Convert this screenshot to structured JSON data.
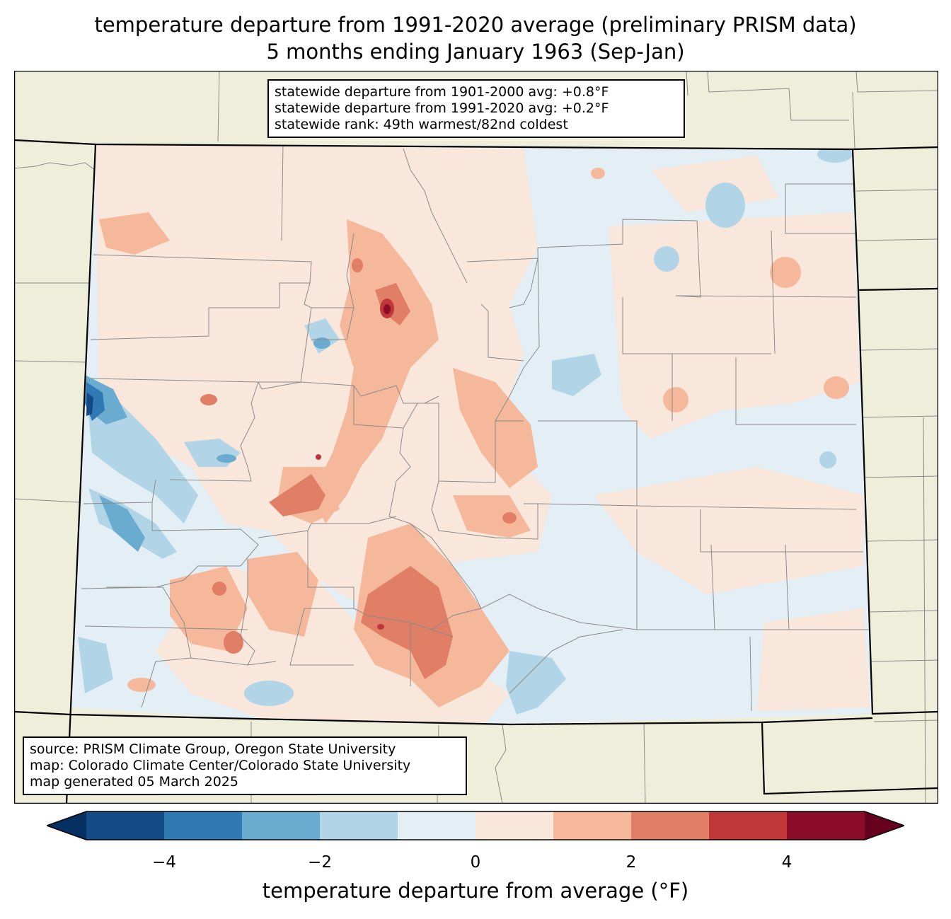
{
  "title": {
    "line1": "temperature departure from 1991-2020 average (preliminary PRISM data)",
    "line2": "5 months ending January 1963 (Sep-Jan)"
  },
  "stats": {
    "line1": "statewide departure from 1901-2000 avg: +0.8°F",
    "line2": "statewide departure from 1991-2020 avg: +0.2°F",
    "line3": "statewide rank: 49th warmest/82nd coldest"
  },
  "source": {
    "line1": "source: PRISM Climate Group, Oregon State University",
    "line2": "map: Colorado Climate Center/Colorado State University",
    "line3": "map generated 05 March 2025"
  },
  "colorbar": {
    "label": "temperature departure from average (°F)",
    "ticks": [
      "−4",
      "−2",
      "0",
      "2",
      "4"
    ],
    "tick_values": [
      -4,
      -2,
      0,
      2,
      4
    ],
    "bin_edges": [
      -5,
      -4,
      -3,
      -2,
      -1,
      0,
      1,
      2,
      3,
      4,
      5
    ],
    "colors": [
      "#053061",
      "#144b87",
      "#2f79b5",
      "#6aabd0",
      "#b1d5e7",
      "#e4eef5",
      "#fae7dc",
      "#f6b89b",
      "#e07e66",
      "#c0373a",
      "#8a0c28",
      "#67001f"
    ]
  },
  "map": {
    "land_color": "#efeedb",
    "region": "Colorado"
  }
}
